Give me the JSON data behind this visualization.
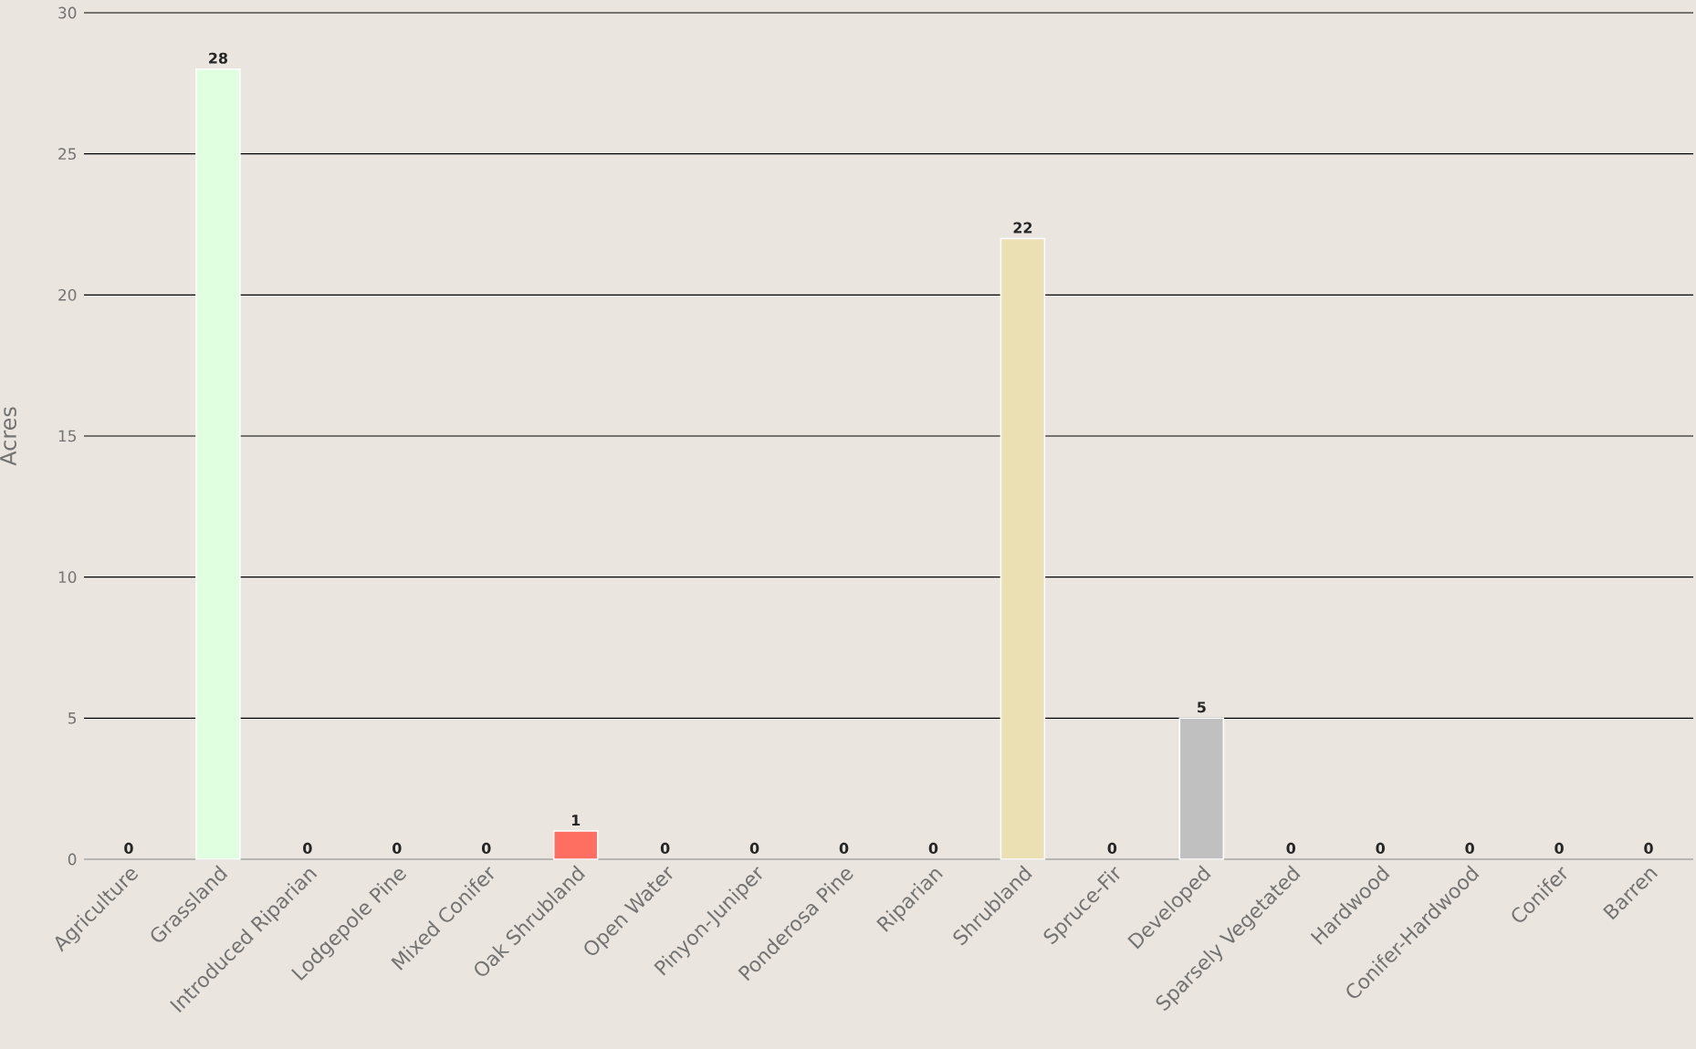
{
  "chart_data": {
    "type": "bar",
    "ylabel": "Acres",
    "categories": [
      "Agriculture",
      "Grassland",
      "Introduced Riparian",
      "Lodgepole Pine",
      "Mixed Conifer",
      "Oak Shrubland",
      "Open Water",
      "Pinyon-Juniper",
      "Ponderosa Pine",
      "Riparian",
      "Shrubland",
      "Spruce-Fir",
      "Developed",
      "Sparsely Vegetated",
      "Hardwood",
      "Conifer-Hardwood",
      "Conifer",
      "Barren"
    ],
    "values": [
      0,
      28,
      0,
      0,
      0,
      1,
      0,
      0,
      0,
      0,
      22,
      0,
      5,
      0,
      0,
      0,
      0,
      0
    ],
    "colors": [
      null,
      "#e0ffe0",
      null,
      null,
      null,
      "#ff6f61",
      null,
      null,
      null,
      null,
      "#ebe0b4",
      null,
      "#c0c0c0",
      null,
      null,
      null,
      null,
      null
    ],
    "ylim": [
      0,
      30
    ],
    "yticks": [
      0,
      5,
      10,
      15,
      20,
      25,
      30
    ],
    "grid": "y",
    "data_labels": true
  }
}
